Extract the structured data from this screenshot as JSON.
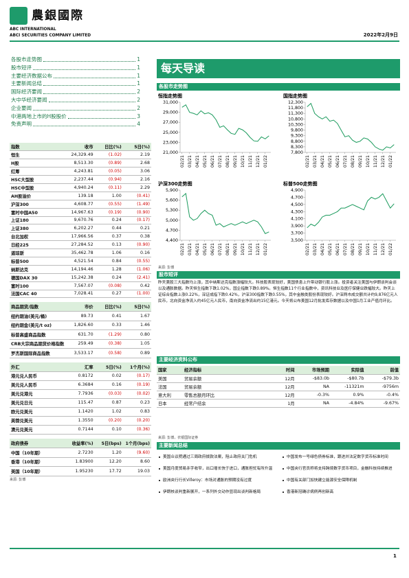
{
  "header": {
    "logo": "農銀國際",
    "name1": "ABC INTERNATIONAL",
    "name2": "ABCI SECURITIES COMPANY LIMITED",
    "date": "2022年2月9日"
  },
  "toc": [
    {
      "title": "各股市走势图",
      "page": "1"
    },
    {
      "title": "股市短评",
      "page": "1"
    },
    {
      "title": "主要经济数据公布",
      "page": "1"
    },
    {
      "title": "主要新闻总结",
      "page": "1"
    },
    {
      "title": "国际经济要闻",
      "page": "2"
    },
    {
      "title": "大中华经济要闻",
      "page": "2"
    },
    {
      "title": "企业要闻",
      "page": "2"
    },
    {
      "title": "中港两地上市的H股股价",
      "page": "3"
    },
    {
      "title": "免责声明",
      "page": "4"
    }
  ],
  "title": "每天导读",
  "tables": {
    "indices": {
      "header": [
        "指数",
        "收市",
        "日比(%)",
        "5日(%)"
      ],
      "rows": [
        [
          "恒生",
          "24,329.49",
          "(1.02)",
          "2.19"
        ],
        [
          "H股",
          "8,513.30",
          "(0.89)",
          "2.68"
        ],
        [
          "红筹",
          "4,243.81",
          "(0.05)",
          "3.06"
        ],
        [
          "HSC大型股",
          "2,237.44",
          "(0.94)",
          "2.16"
        ],
        [
          "HSC中型股",
          "4,940.24",
          "(0.11)",
          "2.29"
        ],
        [
          "AH股溢价",
          "139.18",
          "1.00",
          "(0.41)"
        ],
        [
          "沪深300",
          "4,608.77",
          "(0.55)",
          "(1.49)"
        ],
        [
          "富时中国A50",
          "14,967.63",
          "(0.19)",
          "(0.90)"
        ],
        [
          "上证180",
          "9,670.76",
          "0.24",
          "(0.17)"
        ],
        [
          "上证380",
          "6,202.27",
          "0.44",
          "0.21"
        ],
        [
          "台北加权",
          "17,966.56",
          "0.37",
          "0.38"
        ],
        [
          "日经225",
          "27,284.52",
          "0.13",
          "(0.90)"
        ],
        [
          "道琼斯",
          "35,462.78",
          "1.06",
          "0.16"
        ],
        [
          "标普500",
          "4,521.54",
          "0.84",
          "(0.55)"
        ],
        [
          "纳斯达克",
          "14,194.46",
          "1.28",
          "(1.06)"
        ],
        [
          "德国DAX 30",
          "15,242.38",
          "0.24",
          "(2.41)"
        ],
        [
          "富时100",
          "7,567.07",
          "(0.08)",
          "0.42"
        ],
        [
          "法国CAC 40",
          "7,028.41",
          "0.27",
          "(1.00)"
        ]
      ]
    },
    "commodities": {
      "header": [
        "商品期货/指数",
        "市价",
        "日比(%)",
        "5日(%)"
      ],
      "rows": [
        [
          "纽约期油(美元/桶)",
          "89.73",
          "0.41",
          "1.67"
        ],
        [
          "纽约期金(美元/t oz)",
          "1,826.60",
          "0.33",
          "1.46"
        ],
        [
          "标普高盛商品指数",
          "631.70",
          "(1.29)",
          "0.80"
        ],
        [
          "CRB大宗商品期货价格指数",
          "259.49",
          "(0.38)",
          "1.05"
        ],
        [
          "罗杰斯国际商品指数",
          "3,533.17",
          "(0.58)",
          "0.89"
        ]
      ]
    },
    "fx": {
      "header": [
        "外汇",
        "汇率",
        "5日(%)",
        "1个月(%)"
      ],
      "rows": [
        [
          "港元兑人民币",
          "0.8172",
          "0.02",
          "(0.17)"
        ],
        [
          "美元兑人民币",
          "6.3684",
          "0.16",
          "(0.19)"
        ],
        [
          "美元兑港元",
          "7.7936",
          "(0.03)",
          "(0.02)"
        ],
        [
          "美元兑日元",
          "115.47",
          "0.87",
          "0.23"
        ],
        [
          "欧元兑美元",
          "1.1420",
          "1.02",
          "0.83"
        ],
        [
          "英镑兑美元",
          "1.3550",
          "(0.20)",
          "(0.20)"
        ],
        [
          "澳元兑美元",
          "0.7144",
          "0.10",
          "(0.36)"
        ]
      ]
    },
    "bonds": {
      "header": [
        "政府债券",
        "收益率(%)",
        "5日(bps)",
        "1个月(bps)"
      ],
      "rows": [
        [
          "中国（10年期）",
          "2.7230",
          "1.20",
          "(9.60)"
        ],
        [
          "香港（10年期）",
          "1.83900",
          "12.20",
          "8.60"
        ],
        [
          "美国（10年期）",
          "1.95230",
          "17.72",
          "19.03"
        ]
      ]
    },
    "source": "来源: 彭博"
  },
  "charts_section": "各股市走势图",
  "chart_data": [
    {
      "type": "line",
      "title": "恒指走势图",
      "categories": [
        "02/21",
        null,
        "03/21",
        null,
        "04/21",
        null,
        "05/21",
        null,
        "06/21",
        null,
        "07/21",
        null,
        "08/21",
        null,
        "09/21",
        null,
        "10/21",
        null,
        "11/21",
        null,
        "12/21",
        null,
        "01/22",
        null
      ],
      "series": [
        {
          "color": "#1a9a5c",
          "values": [
            30000,
            30500,
            29000,
            28800,
            28500,
            29300,
            28700,
            28900,
            28500,
            27500,
            26000,
            26300,
            25500,
            24800,
            24600,
            25800,
            25500,
            24900,
            24000,
            23300,
            23200,
            24100,
            23700,
            24300
          ]
        }
      ],
      "ylim": [
        21000,
        31000
      ],
      "yticks": [
        {
          "value": 21000,
          "label": "21,000"
        },
        {
          "value": 23000,
          "label": "23,000"
        },
        {
          "value": 25000,
          "label": "25,000"
        },
        {
          "value": 27000,
          "label": "27,000"
        },
        {
          "value": 29000,
          "label": "29,000"
        },
        {
          "value": 31000,
          "label": "31,000"
        }
      ]
    },
    {
      "type": "line",
      "title": "国指走势图",
      "categories": [
        "02/21",
        null,
        "03/21",
        null,
        "04/21",
        null,
        "05/21",
        null,
        "06/21",
        null,
        "07/21",
        null,
        "08/21",
        null,
        "09/21",
        null,
        "10/21",
        null,
        "11/21",
        null,
        "12/21",
        null,
        "01/22",
        null
      ],
      "series": [
        {
          "color": "#1a9a5c",
          "values": [
            11900,
            12200,
            11300,
            11000,
            10800,
            11000,
            10600,
            10700,
            10400,
            9800,
            9200,
            9300,
            8900,
            8700,
            8800,
            9100,
            9000,
            8700,
            8300,
            8100,
            8000,
            8300,
            8200,
            8500
          ]
        }
      ],
      "ylim": [
        7800,
        12300
      ],
      "yticks": [
        {
          "value": 7800,
          "label": "7,800"
        },
        {
          "value": 8300,
          "label": "8,300"
        },
        {
          "value": 8800,
          "label": "8,800"
        },
        {
          "value": 9300,
          "label": "9,300"
        },
        {
          "value": 9800,
          "label": "9,800"
        },
        {
          "value": 10300,
          "label": "10,300"
        },
        {
          "value": 10800,
          "label": "10,800"
        },
        {
          "value": 11300,
          "label": "11,300"
        },
        {
          "value": 11800,
          "label": "11,800"
        },
        {
          "value": 12300,
          "label": "12,300"
        }
      ]
    },
    {
      "type": "line",
      "title": "沪深300走势图",
      "categories": [
        "02/21",
        null,
        "03/21",
        null,
        "04/21",
        null,
        "05/21",
        null,
        "06/21",
        null,
        "07/21",
        null,
        "08/21",
        null,
        "09/21",
        null,
        "10/21",
        null,
        "11/21",
        null,
        "12/21",
        null,
        "01/22",
        null
      ],
      "series": [
        {
          "color": "#1a9a5c",
          "values": [
            5700,
            5800,
            5100,
            5000,
            5050,
            5200,
            5300,
            5200,
            5150,
            4850,
            4900,
            4800,
            4850,
            4900,
            4850,
            4900,
            4950,
            4900,
            4950,
            5000,
            4950,
            4800,
            4600,
            4650
          ]
        }
      ],
      "ylim": [
        4400,
        5900
      ],
      "yticks": [
        {
          "value": 4400,
          "label": "4,400"
        },
        {
          "value": 4700,
          "label": "4,700"
        },
        {
          "value": 5000,
          "label": "5,000"
        },
        {
          "value": 5300,
          "label": "5,300"
        },
        {
          "value": 5600,
          "label": "5,600"
        },
        {
          "value": 5900,
          "label": "5,900"
        }
      ]
    },
    {
      "type": "line",
      "title": "标普500走势图",
      "categories": [
        "02/21",
        null,
        "03/21",
        null,
        "04/21",
        null,
        "05/21",
        null,
        "06/21",
        null,
        "07/21",
        null,
        "08/21",
        null,
        "09/21",
        null,
        "10/21",
        null,
        "11/21",
        null,
        "12/21",
        null,
        "01/22",
        null
      ],
      "series": [
        {
          "color": "#1a9a5c",
          "values": [
            3850,
            3950,
            3900,
            4000,
            4150,
            4200,
            4200,
            4250,
            4300,
            4400,
            4400,
            4450,
            4500,
            4450,
            4400,
            4350,
            4600,
            4700,
            4650,
            4700,
            4800,
            4600,
            4400,
            4520
          ]
        }
      ],
      "ylim": [
        3500,
        4900
      ],
      "yticks": [
        {
          "value": 3500,
          "label": "3,500"
        },
        {
          "value": 3700,
          "label": "3,700"
        },
        {
          "value": 3900,
          "label": "3,900"
        },
        {
          "value": 4100,
          "label": "4,100"
        },
        {
          "value": 4300,
          "label": "4,300"
        },
        {
          "value": 4500,
          "label": "4,500"
        },
        {
          "value": 4700,
          "label": "4,700"
        },
        {
          "value": 4900,
          "label": "4,900"
        }
      ]
    }
  ],
  "chart_source": "来源: 彭博",
  "commentary": {
    "heading": "股市短评",
    "text": "昨天美股三大指数均上涨，其中纳斯达克指数涨幅较大。科技股表现较好，美国债息上升带动银行股上涨。投资者关注美国与伊朗谈判会谈以及通胀数据。昨天恒生指数下跌1.02%，国企指数下跌0.89%。恒生指数11个行业指数中，资讯科技业及医疗保健业跌幅较大。昨天上证综合指数上涨0.22%，深证成指下跌0.42%，沪深300指数下跌0.55%，其中金融类股份表现较好。沪深两市成交额共计约9,876亿元人民币，北向资金净流入约45亿元人民币，南向资金净流出约15亿港元。今天将公布美国12月批发库存数据以及中国1月工业产值月环比。"
  },
  "econ": {
    "heading": "主要经济资料公布",
    "header": [
      "国家",
      "经济指标",
      "时间",
      "市场预期",
      "实际值",
      "前值"
    ],
    "rows": [
      [
        "美国",
        "贸易余额",
        "12月",
        "-$83.0b",
        "-$80.7b",
        "-$79.3b"
      ],
      [
        "法国",
        "贸易余额",
        "12月",
        "NA",
        "-11321m",
        "-9756m"
      ],
      [
        "意大利",
        "零售总额月环比",
        "12月",
        "-0.3%",
        "0.9%",
        "-0.4%"
      ],
      [
        "日本",
        "经常户结余",
        "1月",
        "NA",
        "-4.84%",
        "-9.67%"
      ]
    ],
    "source": "来源: 彭博，农银国际证券"
  },
  "news": {
    "heading": "主要新闻总结",
    "left": [
      "美国众议院通过三周政府拨款法案，阻止政府关门危机",
      "美国月度贸易赤字收窄，出口增长快于进口，通胀担忧有所升温",
      "欧洲央行行长Villeroy：市场对通胀的预期没有过度",
      "伊朗核谈判重新展开，一系列外交动作显现出谈判新格局"
    ],
    "right": [
      "中国发布一号绿色债券标准，跟进并法定数字货币标准时间",
      "中国央行官员称将支持跨境数字货币项目，金融科技持续推进",
      "中国有关部门加快建立能源安全保障机制",
      "香港新冠确诊病例再创新高"
    ]
  },
  "footer": {
    "page": "1"
  }
}
